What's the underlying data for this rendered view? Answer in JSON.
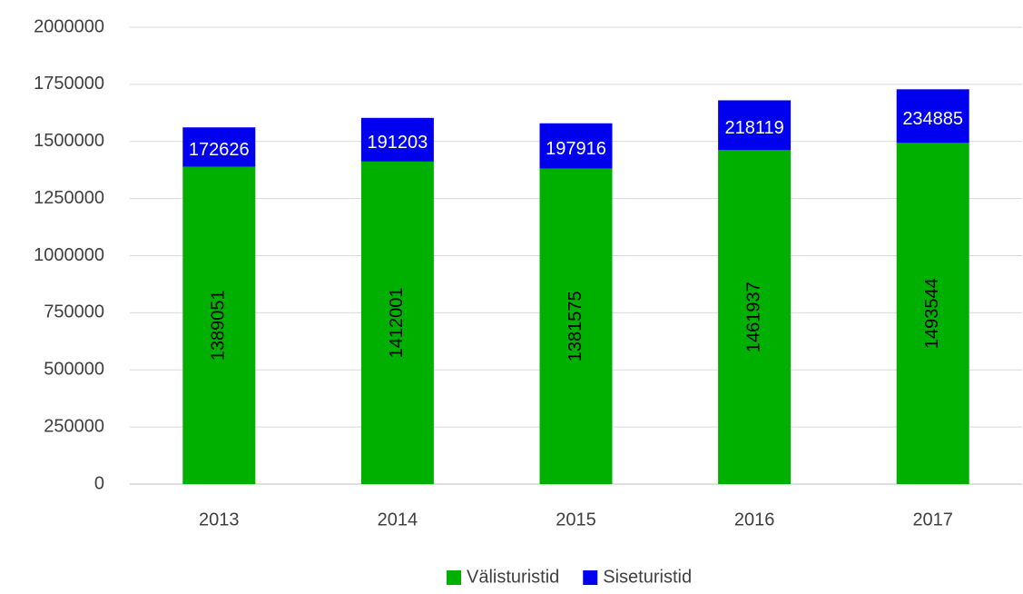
{
  "chart_data": {
    "type": "bar",
    "stacked": true,
    "categories": [
      "2013",
      "2014",
      "2015",
      "2016",
      "2017"
    ],
    "series": [
      {
        "name": "Välisturistid",
        "color": "#00b000",
        "values": [
          1389051,
          1412001,
          1381575,
          1461937,
          1493544
        ]
      },
      {
        "name": "Siseturistid",
        "color": "#0000ee",
        "values": [
          172626,
          191203,
          197916,
          218119,
          234885
        ]
      }
    ],
    "ylim": [
      0,
      2000000
    ],
    "yticks": [
      0,
      250000,
      500000,
      750000,
      1000000,
      1250000,
      1500000,
      1750000,
      2000000
    ],
    "grid": true,
    "legend": "bottom"
  }
}
